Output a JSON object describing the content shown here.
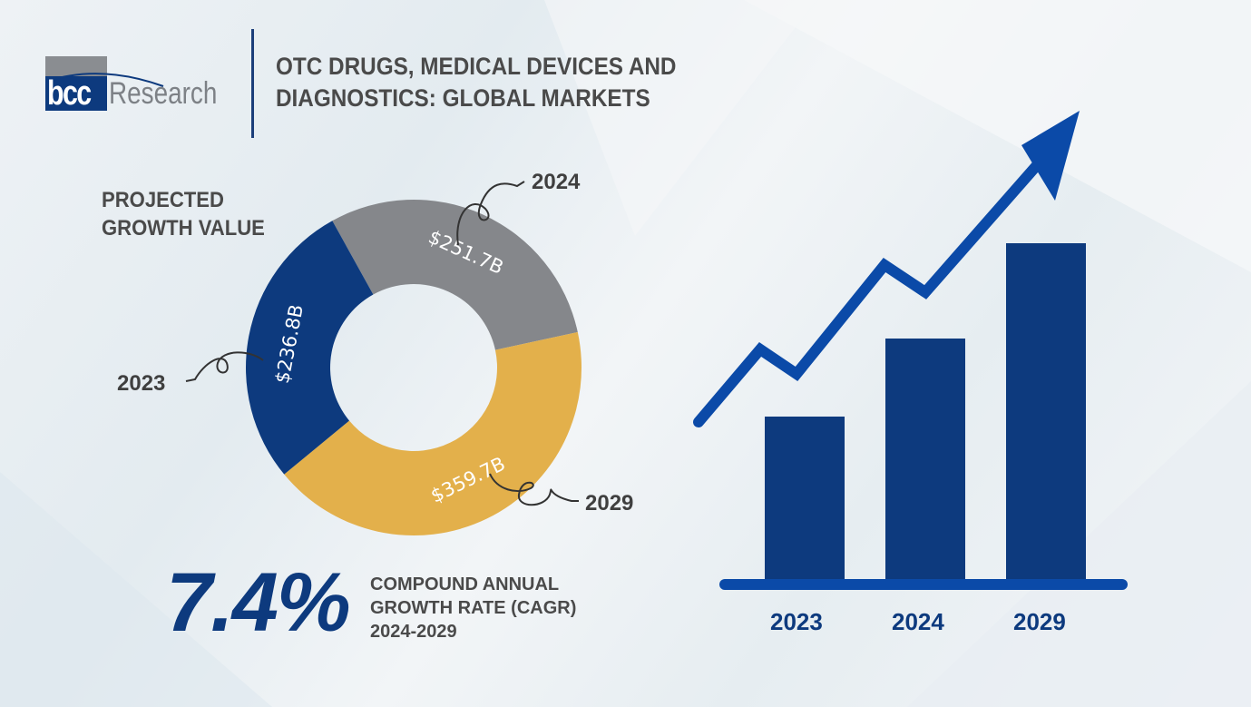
{
  "logo": {
    "text_bcc": "bcc",
    "text_research": "Research"
  },
  "title_line1": "OTC DRUGS, MEDICAL DEVICES AND",
  "title_line2": "DIAGNOSTICS: GLOBAL MARKETS",
  "colors": {
    "navy": "#0d3a7e",
    "gray": "#85878b",
    "gold": "#e3b04b",
    "arrow": "#0b4aa8"
  },
  "chart_data": [
    {
      "type": "pie",
      "variant": "donut",
      "title": "PROJECTED GROWTH VALUE",
      "title_line1": "PROJECTED",
      "title_line2": "GROWTH VALUE",
      "categories": [
        "2023",
        "2024",
        "2029"
      ],
      "values": [
        236.8,
        251.7,
        359.7
      ],
      "labels": [
        "$236.8B",
        "$251.7B",
        "$359.7B"
      ],
      "colors": [
        "#0d3a7e",
        "#85878b",
        "#e3b04b"
      ]
    },
    {
      "type": "bar",
      "categories": [
        "2023",
        "2024",
        "2029"
      ]
    }
  ],
  "cagr": {
    "value": "7.4%",
    "line1": "COMPOUND ANNUAL",
    "line2": "GROWTH RATE (CAGR)",
    "line3": "2024-2029"
  }
}
